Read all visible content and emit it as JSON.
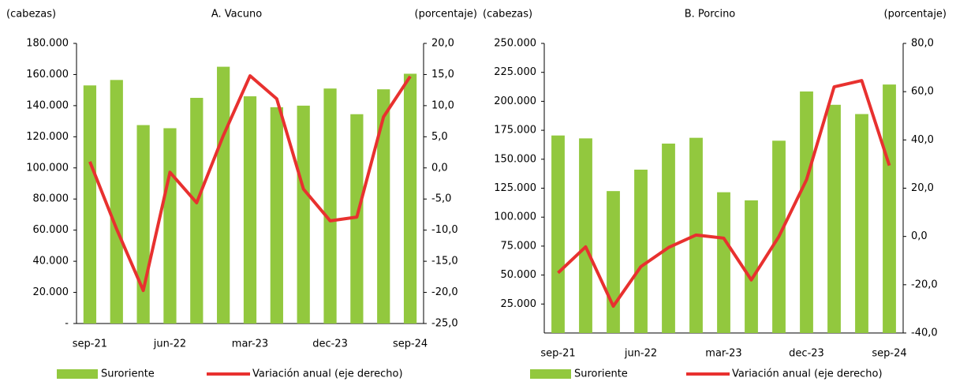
{
  "chart_data": [
    {
      "type": "bar",
      "title": "A. Vacuno",
      "y_label": "(cabezas)",
      "y2_label": "(porcentaje)",
      "categories": [
        "sep-21",
        null,
        null,
        "jun-22",
        null,
        null,
        "mar-23",
        null,
        null,
        "dec-23",
        null,
        null,
        "sep-24"
      ],
      "series": [
        {
          "name": "Suroriente",
          "type": "bar",
          "color": "#92c83e",
          "values": [
            153000,
            156500,
            127500,
            125500,
            145000,
            165000,
            146000,
            139000,
            140000,
            151000,
            134500,
            150500,
            160500
          ]
        },
        {
          "name": "Variación anual (eje derecho)",
          "type": "line",
          "axis": "y2",
          "color": "#e8312f",
          "values": [
            1.0,
            -9.8,
            -19.7,
            -0.7,
            -5.6,
            5.2,
            14.8,
            11.1,
            -3.4,
            -8.5,
            -7.9,
            8.2,
            14.7
          ]
        }
      ],
      "ylim": [
        0,
        180000
      ],
      "yticks": [
        {
          "value": 0,
          "label": "-"
        },
        {
          "value": 20000,
          "label": "20.000"
        },
        {
          "value": 40000,
          "label": "40.000"
        },
        {
          "value": 60000,
          "label": "60.000"
        },
        {
          "value": 80000,
          "label": "80.000"
        },
        {
          "value": 100000,
          "label": "100.000"
        },
        {
          "value": 120000,
          "label": "120.000"
        },
        {
          "value": 140000,
          "label": "140.000"
        },
        {
          "value": 160000,
          "label": "160.000"
        },
        {
          "value": 180000,
          "label": "180.000"
        }
      ],
      "y2lim": [
        -25,
        20
      ],
      "y2ticks": [
        {
          "value": -25,
          "label": "-25,0"
        },
        {
          "value": -20,
          "label": "-20,0"
        },
        {
          "value": -15,
          "label": "-15,0"
        },
        {
          "value": -10,
          "label": "-10,0"
        },
        {
          "value": -5,
          "label": "-5,0"
        },
        {
          "value": 0,
          "label": "0,0"
        },
        {
          "value": 5,
          "label": "5,0"
        },
        {
          "value": 10,
          "label": "10,0"
        },
        {
          "value": 15,
          "label": "15,0"
        },
        {
          "value": 20,
          "label": "20,0"
        }
      ]
    },
    {
      "type": "bar",
      "title": "B. Porcino",
      "y_label": "(cabezas)",
      "y2_label": "(porcentaje)",
      "categories": [
        "sep-21",
        null,
        null,
        "jun-22",
        null,
        null,
        "mar-23",
        null,
        null,
        "dec-23",
        null,
        null,
        "sep-24"
      ],
      "series": [
        {
          "name": "Suroriente",
          "type": "bar",
          "color": "#92c83e",
          "values": [
            170500,
            168000,
            122500,
            141000,
            163500,
            168500,
            121500,
            114500,
            166000,
            208500,
            197000,
            189000,
            214500
          ]
        },
        {
          "name": "Variación anual (eje derecho)",
          "type": "line",
          "axis": "y2",
          "color": "#e8312f",
          "values": [
            -15.1,
            -4.3,
            -28.9,
            -12.5,
            -4.6,
            0.6,
            -0.7,
            -18.0,
            0.0,
            23.5,
            62.0,
            64.6,
            29.4
          ]
        }
      ],
      "ylim": [
        0,
        250000
      ],
      "yticks": [
        {
          "value": 25000,
          "label": "25.000"
        },
        {
          "value": 50000,
          "label": "50.000"
        },
        {
          "value": 75000,
          "label": "75.000"
        },
        {
          "value": 100000,
          "label": "100.000"
        },
        {
          "value": 125000,
          "label": "125.000"
        },
        {
          "value": 150000,
          "label": "150.000"
        },
        {
          "value": 175000,
          "label": "175.000"
        },
        {
          "value": 200000,
          "label": "200.000"
        },
        {
          "value": 225000,
          "label": "225.000"
        },
        {
          "value": 250000,
          "label": "250.000"
        }
      ],
      "y2lim": [
        -40,
        80
      ],
      "y2ticks": [
        {
          "value": -40,
          "label": "-40,0"
        },
        {
          "value": -20,
          "label": "-20,0"
        },
        {
          "value": 0,
          "label": "0,0"
        },
        {
          "value": 20,
          "label": "20,0"
        },
        {
          "value": 40,
          "label": "40,0"
        },
        {
          "value": 60,
          "label": "60,0"
        },
        {
          "value": 80,
          "label": "80,0"
        }
      ]
    }
  ]
}
